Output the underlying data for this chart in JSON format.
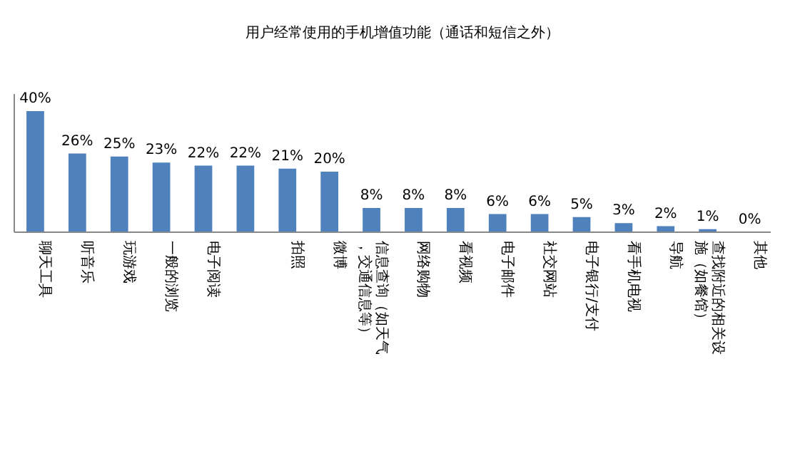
{
  "chart_data": {
    "type": "bar",
    "title": "用户经常使用的手机增值功能（通话和短信之外）",
    "categories": [
      "聊天工具",
      "听音乐",
      "玩游戏",
      "一般的浏览",
      "电子阅读",
      null,
      "拍照",
      "微博",
      "信息查询（如天气，交通信息等）",
      "网络购物",
      "看视频",
      "电子邮件",
      "社交网站",
      "电子银行/支付",
      "看手机电视",
      "导航",
      "查找附近的相关设施（如餐馆）",
      "其他"
    ],
    "values": [
      40,
      26,
      25,
      23,
      22,
      22,
      21,
      20,
      8,
      8,
      8,
      6,
      6,
      5,
      3,
      2,
      1,
      0
    ],
    "value_labels": [
      "40%",
      "26%",
      "25%",
      "23%",
      "22%",
      "22%",
      "21%",
      "20%",
      "8%",
      "8%",
      "8%",
      "6%",
      "6%",
      "5%",
      "3%",
      "2%",
      "1%",
      "0%"
    ],
    "color": "#4f81bd"
  }
}
